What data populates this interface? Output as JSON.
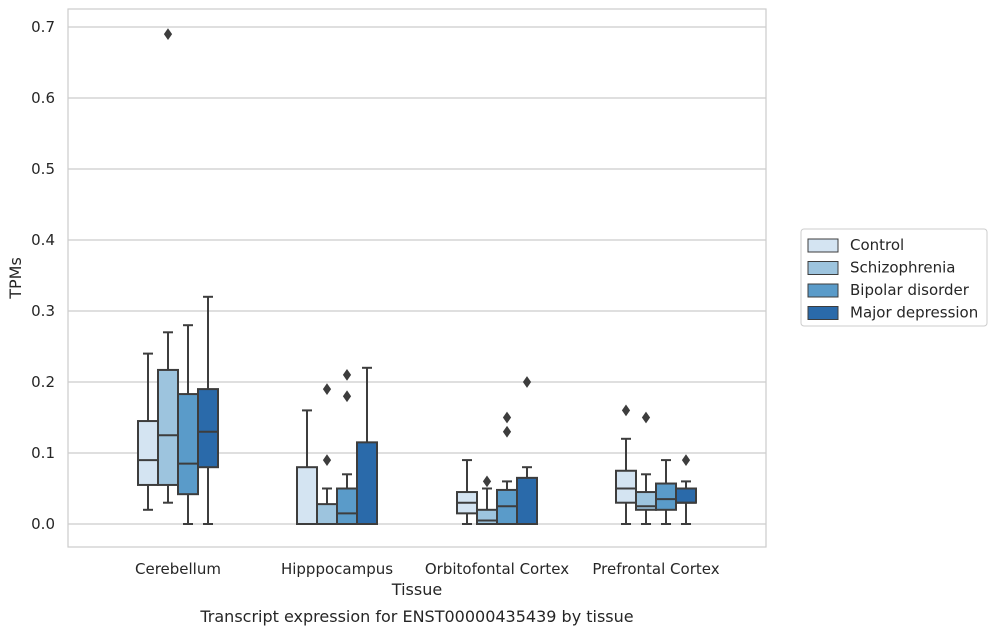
{
  "chart_data": {
    "type": "box",
    "xlabel": "Tissue",
    "ylabel": "TPMs",
    "caption": "Transcript expression for ENST00000435439 by tissue",
    "ylim": [
      -0.034,
      0.725
    ],
    "yticks": [
      0.0,
      0.1,
      0.2,
      0.3,
      0.4,
      0.5,
      0.6,
      0.7
    ],
    "ytick_labels": [
      "0.0",
      "0.1",
      "0.2",
      "0.3",
      "0.4",
      "0.5",
      "0.6",
      "0.7"
    ],
    "grid": "horizontal",
    "legend_position": "right",
    "categories": [
      "Cerebellum",
      "Hipppocampus",
      "Orbitofontal Cortex",
      "Prefrontal Cortex"
    ],
    "series": [
      {
        "name": "Control",
        "color": "#d4e4f2",
        "boxes": [
          {
            "low": 0.02,
            "q1": 0.055,
            "median": 0.09,
            "q3": 0.145,
            "high": 0.24,
            "outliers": []
          },
          {
            "low": 0.0,
            "q1": 0.0,
            "median": 0.0,
            "q3": 0.08,
            "high": 0.16,
            "outliers": []
          },
          {
            "low": 0.0,
            "q1": 0.015,
            "median": 0.03,
            "q3": 0.045,
            "high": 0.09,
            "outliers": []
          },
          {
            "low": 0.0,
            "q1": 0.03,
            "median": 0.05,
            "q3": 0.075,
            "high": 0.12,
            "outliers": [
              0.16
            ]
          }
        ]
      },
      {
        "name": "Schizophrenia",
        "color": "#9dc4de",
        "boxes": [
          {
            "low": 0.03,
            "q1": 0.055,
            "median": 0.125,
            "q3": 0.217,
            "high": 0.27,
            "outliers": [
              0.69
            ]
          },
          {
            "low": 0.0,
            "q1": 0.0,
            "median": 0.0,
            "q3": 0.028,
            "high": 0.05,
            "outliers": [
              0.09,
              0.19
            ]
          },
          {
            "low": 0.0,
            "q1": 0.0,
            "median": 0.005,
            "q3": 0.02,
            "high": 0.05,
            "outliers": [
              0.06
            ]
          },
          {
            "low": 0.0,
            "q1": 0.02,
            "median": 0.025,
            "q3": 0.045,
            "high": 0.07,
            "outliers": [
              0.15
            ]
          }
        ]
      },
      {
        "name": "Bipolar disorder",
        "color": "#5a9bc9",
        "boxes": [
          {
            "low": 0.0,
            "q1": 0.042,
            "median": 0.085,
            "q3": 0.183,
            "high": 0.28,
            "outliers": []
          },
          {
            "low": 0.0,
            "q1": 0.0,
            "median": 0.015,
            "q3": 0.05,
            "high": 0.07,
            "outliers": [
              0.18,
              0.21
            ]
          },
          {
            "low": 0.0,
            "q1": 0.0,
            "median": 0.025,
            "q3": 0.048,
            "high": 0.06,
            "outliers": [
              0.13,
              0.15
            ]
          },
          {
            "low": 0.0,
            "q1": 0.02,
            "median": 0.035,
            "q3": 0.057,
            "high": 0.09,
            "outliers": []
          }
        ]
      },
      {
        "name": "Major depression",
        "color": "#2a6aaa",
        "boxes": [
          {
            "low": 0.0,
            "q1": 0.08,
            "median": 0.13,
            "q3": 0.19,
            "high": 0.32,
            "outliers": []
          },
          {
            "low": 0.0,
            "q1": 0.0,
            "median": 0.0,
            "q3": 0.115,
            "high": 0.22,
            "outliers": []
          },
          {
            "low": 0.0,
            "q1": 0.0,
            "median": 0.0,
            "q3": 0.065,
            "high": 0.08,
            "outliers": [
              0.2
            ]
          },
          {
            "low": 0.0,
            "q1": 0.03,
            "median": 0.03,
            "q3": 0.05,
            "high": 0.06,
            "outliers": [
              0.09
            ]
          }
        ]
      }
    ]
  }
}
